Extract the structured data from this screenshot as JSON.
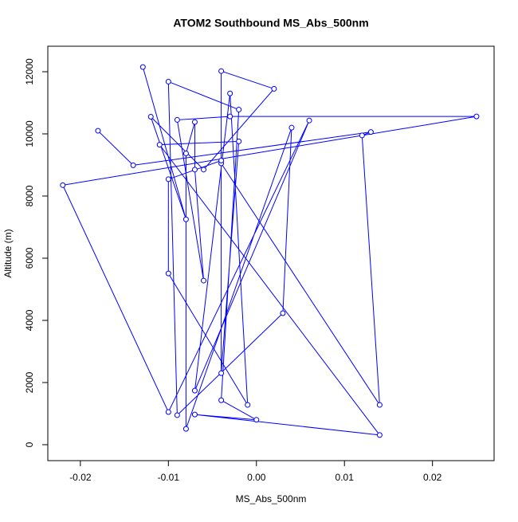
{
  "chart_data": {
    "type": "line",
    "title": "ATOM2 Southbound MS_Abs_500nm",
    "x_label": "MS_Abs_500nm",
    "y_label": "Altitude (m)",
    "x": [
      -0.018,
      -0.014,
      0.013,
      0.012,
      0.014,
      -0.004,
      -0.004,
      -0.002,
      -0.011,
      0.014,
      -0.007,
      0.0,
      -0.004,
      -0.002,
      -0.01,
      -0.009,
      0.003,
      0.004,
      -0.008,
      -0.008,
      -0.007,
      -0.007,
      -0.006,
      -0.009,
      -0.003,
      0.025,
      -0.022,
      -0.01,
      0.006,
      -0.007,
      -0.003,
      -0.001,
      -0.01,
      -0.01,
      -0.004,
      -0.004,
      0.002,
      -0.006,
      -0.012,
      -0.008,
      -0.0129
    ],
    "series": [
      {
        "name": "MS_Abs_500nm",
        "color": "#0000ff",
        "values": [
          10100,
          8990,
          10060,
          9950,
          1280,
          9050,
          2300,
          9760,
          9650,
          310,
          970,
          800,
          1430,
          10780,
          11680,
          950,
          4230,
          10200,
          510,
          9370,
          10380,
          8850,
          5280,
          10450,
          10560,
          10560,
          8350,
          1050,
          10430,
          1740,
          11300,
          1280,
          5510,
          8540,
          9140,
          12020,
          11450,
          8850,
          10550,
          7250,
          12150
        ]
      }
    ],
    "xlim": [
      -0.0237,
      0.027
    ],
    "ylim": [
      -513,
      12820
    ],
    "xticks": [
      -0.02,
      -0.01,
      {
        "value": 0,
        "label": "0.00"
      },
      0.01,
      0.02
    ],
    "yticks": [
      0,
      2000,
      4000,
      6000,
      8000,
      10000,
      12000
    ]
  }
}
